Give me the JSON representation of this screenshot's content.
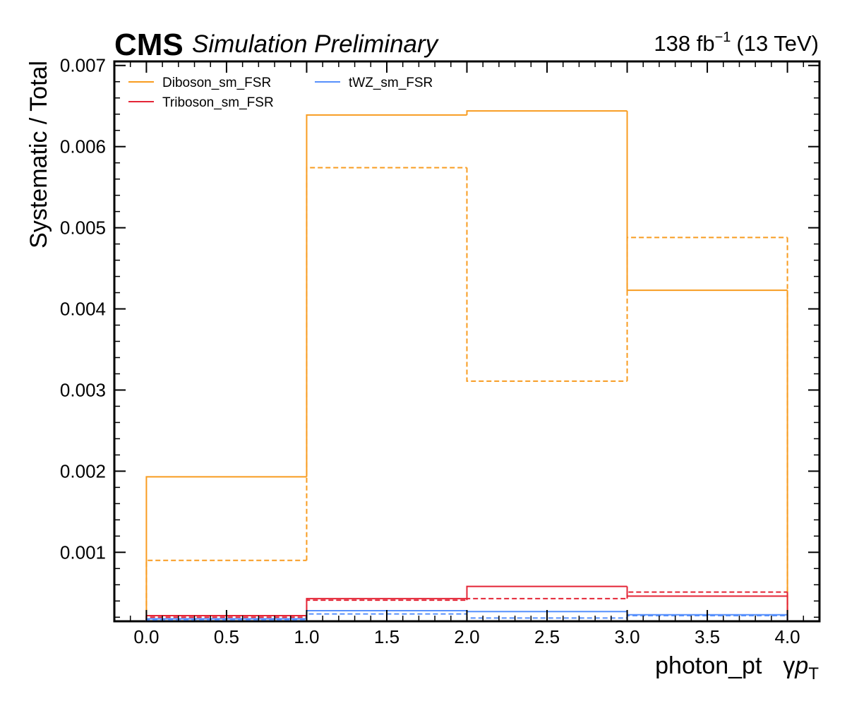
{
  "header": {
    "experiment": "CMS",
    "status": "Simulation Preliminary",
    "lumi_value": "138 fb",
    "lumi_exponent": "−1",
    "energy": "(13 TeV)"
  },
  "chart_data": {
    "type": "step",
    "title": "",
    "xlabel_text": "photon_pt",
    "xlabel_symbol_gamma": "γ",
    "xlabel_symbol_p": "p",
    "xlabel_symbol_sub": "T",
    "ylabel": "Systematic / Total",
    "xlim": [
      -0.2,
      4.2
    ],
    "ylim": [
      0.00015,
      0.00705
    ],
    "x_ticks": [
      0.0,
      0.5,
      1.0,
      1.5,
      2.0,
      2.5,
      3.0,
      3.5,
      4.0
    ],
    "x_tick_labels": [
      "0.0",
      "0.5",
      "1.0",
      "1.5",
      "2.0",
      "2.5",
      "3.0",
      "3.5",
      "4.0"
    ],
    "y_ticks": [
      0.001,
      0.002,
      0.003,
      0.004,
      0.005,
      0.006,
      0.007
    ],
    "y_tick_labels": [
      "0.001",
      "0.002",
      "0.003",
      "0.004",
      "0.005",
      "0.006",
      "0.007"
    ],
    "bin_edges": [
      0,
      1,
      2,
      3,
      4
    ],
    "legend_position": "top-left",
    "series": [
      {
        "name": "Diboson_sm_FSR",
        "color": "#f89c20",
        "style": "solid",
        "values": [
          0.00193,
          0.00639,
          0.00644,
          0.00423
        ]
      },
      {
        "name": "",
        "color": "#f89c20",
        "style": "dashed",
        "values": [
          0.0009,
          0.00574,
          0.00311,
          0.00488
        ]
      },
      {
        "name": "Triboson_sm_FSR",
        "color": "#e42536",
        "style": "solid",
        "values": [
          0.00022,
          0.00043,
          0.00058,
          0.00046
        ]
      },
      {
        "name": "",
        "color": "#e42536",
        "style": "dashed",
        "values": [
          0.0002,
          0.00041,
          0.00043,
          0.00051
        ]
      },
      {
        "name": "tWZ_sm_FSR",
        "color": "#5790fc",
        "style": "solid",
        "values": [
          0.00018,
          0.00028,
          0.00027,
          0.00023
        ]
      },
      {
        "name": "",
        "color": "#5790fc",
        "style": "dashed",
        "values": [
          0.00017,
          0.00024,
          0.00019,
          0.00022
        ]
      }
    ]
  }
}
